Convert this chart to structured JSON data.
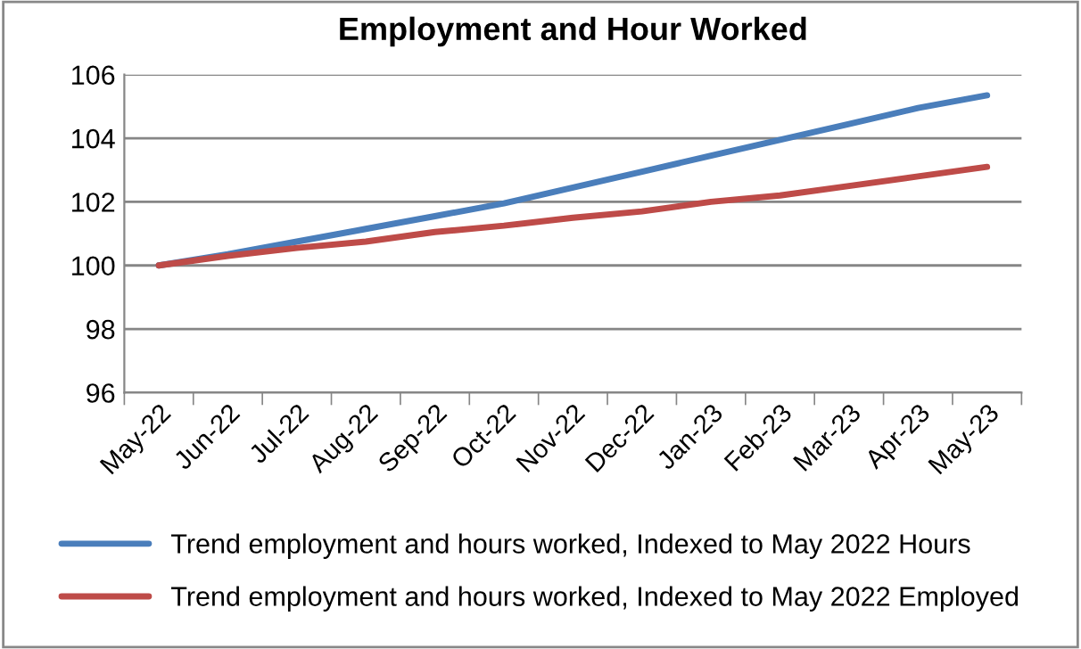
{
  "chart_data": {
    "type": "line",
    "title": "Employment and Hour Worked",
    "categories": [
      "May-22",
      "Jun-22",
      "Jul-22",
      "Aug-22",
      "Sep-22",
      "Oct-22",
      "Nov-22",
      "Dec-22",
      "Jan-23",
      "Feb-23",
      "Mar-23",
      "Apr-23",
      "May-23"
    ],
    "series": [
      {
        "name": "Trend employment and hours worked, Indexed to May 2022 Hours",
        "color": "#4a7ebb",
        "values": [
          100,
          100.35,
          100.75,
          101.15,
          101.55,
          101.95,
          102.45,
          102.95,
          103.45,
          103.95,
          104.45,
          104.95,
          105.35
        ]
      },
      {
        "name": "Trend employment and hours worked, Indexed to May 2022 Employed",
        "color": "#be4b48",
        "values": [
          100,
          100.3,
          100.55,
          100.75,
          101.05,
          101.25,
          101.5,
          101.7,
          102.0,
          102.2,
          102.5,
          102.8,
          103.1
        ]
      }
    ],
    "ylim": [
      96,
      106
    ],
    "yticks": [
      96,
      98,
      100,
      102,
      104,
      106
    ],
    "grid": "y",
    "legend": "bottom",
    "marker": "none",
    "line_style": "solid"
  }
}
